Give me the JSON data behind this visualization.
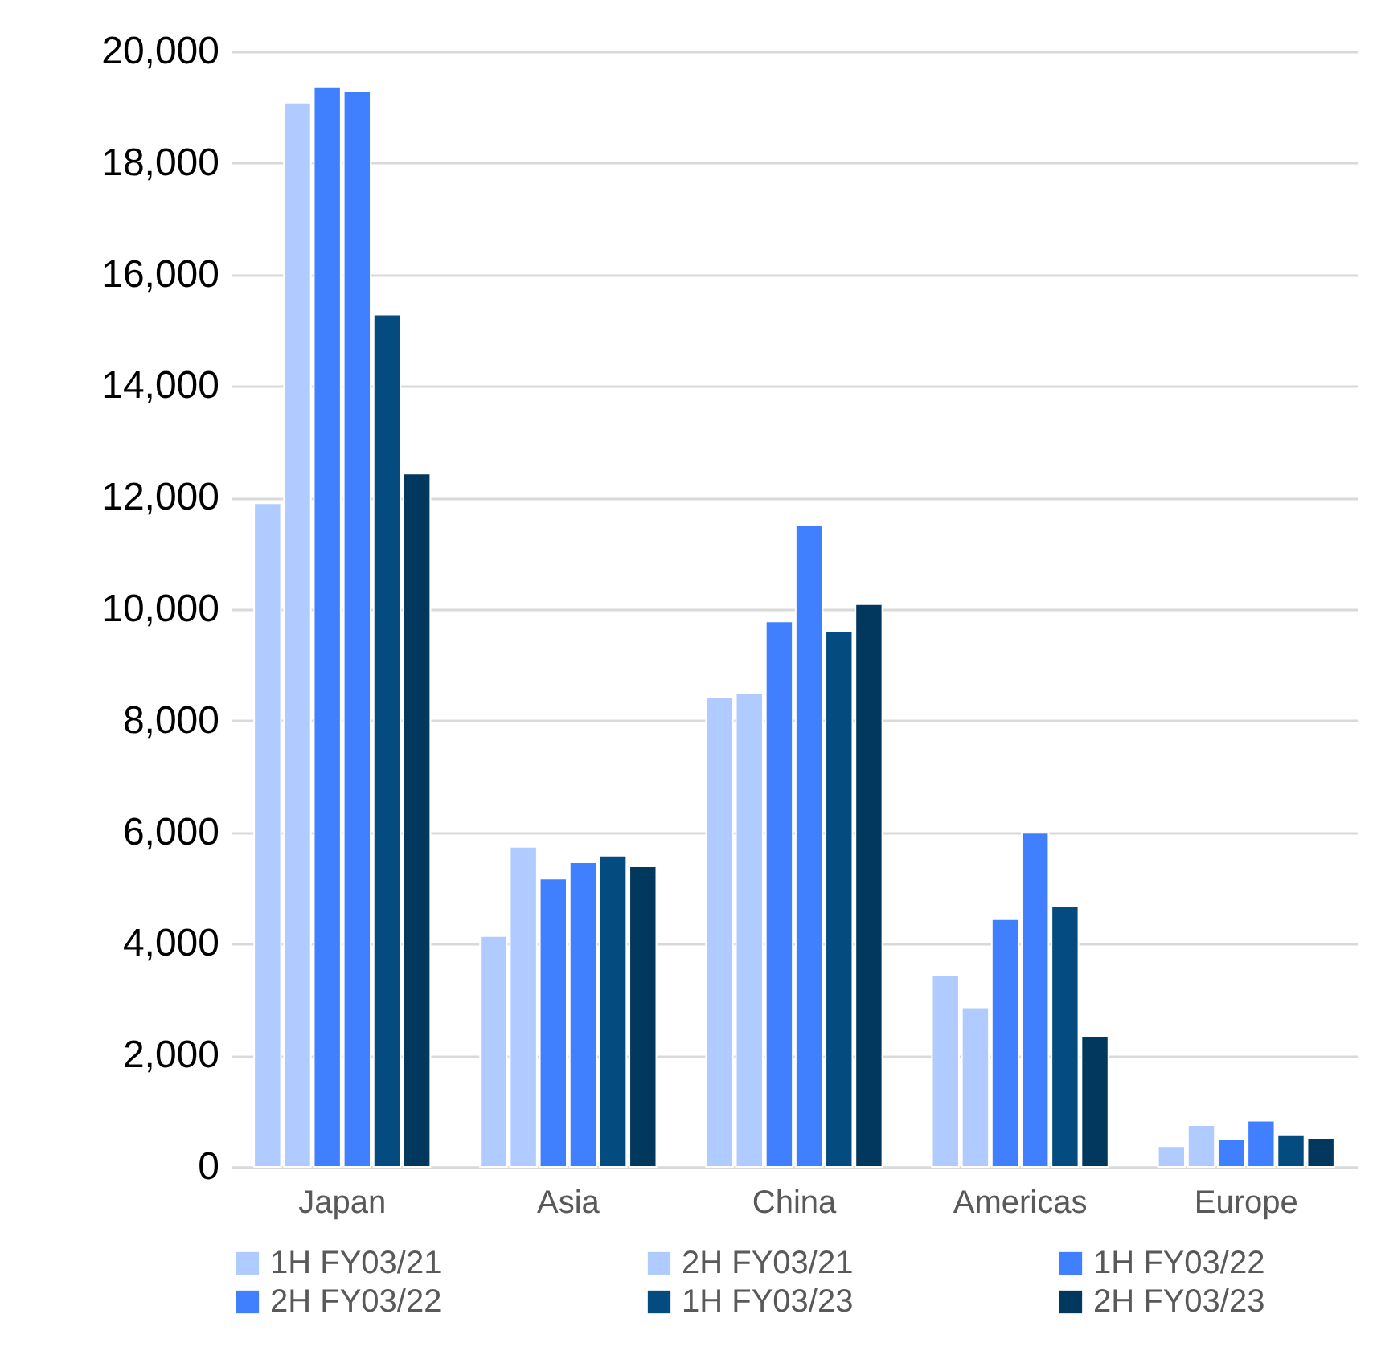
{
  "chart_data": {
    "type": "bar",
    "categories": [
      "Japan",
      "Asia",
      "China",
      "Americas",
      "Europe"
    ],
    "series": [
      {
        "name": "1H FY03/21",
        "color": "#b0cbff",
        "values": [
          11900,
          4140,
          8430,
          3430,
          370
        ]
      },
      {
        "name": "2H FY03/21",
        "color": "#b0cbff",
        "values": [
          19080,
          5740,
          8490,
          2860,
          750
        ]
      },
      {
        "name": "1H FY03/22",
        "color": "#4080ff",
        "values": [
          19370,
          5170,
          9780,
          4440,
          490
        ]
      },
      {
        "name": "2H FY03/22",
        "color": "#4080ff",
        "values": [
          19280,
          5460,
          11510,
          5990,
          830
        ]
      },
      {
        "name": "1H FY03/23",
        "color": "#044c80",
        "values": [
          15280,
          5580,
          9610,
          4680,
          580
        ]
      },
      {
        "name": "2H FY03/23",
        "color": "#02375e",
        "values": [
          12430,
          5390,
          10090,
          2350,
          520
        ]
      }
    ],
    "ylim": [
      0,
      20000
    ],
    "yticks": [
      0,
      {
        "value": 2000,
        "label": "2,000"
      },
      {
        "value": 4000,
        "label": "4,000"
      },
      {
        "value": 6000,
        "label": "6,000"
      },
      {
        "value": 8000,
        "label": "8,000"
      },
      {
        "value": 10000,
        "label": "10,000"
      },
      {
        "value": 12000,
        "label": "12,000"
      },
      {
        "value": 14000,
        "label": "14,000"
      },
      {
        "value": 16000,
        "label": "16,000"
      },
      {
        "value": 18000,
        "label": "18,000"
      },
      {
        "value": 20000,
        "label": "20,000"
      }
    ],
    "grid": "y",
    "legend": "bottom"
  }
}
